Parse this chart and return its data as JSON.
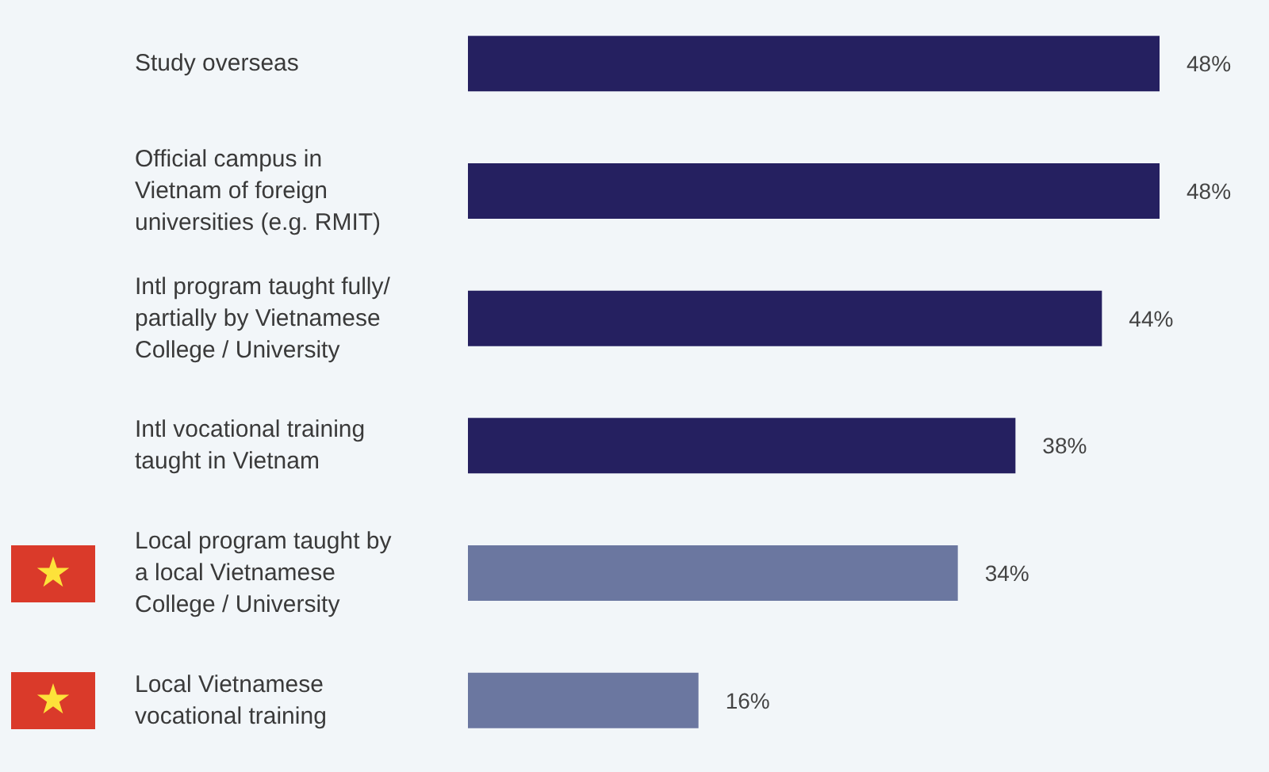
{
  "chart_data": {
    "type": "bar",
    "orientation": "horizontal",
    "categories": [
      "Study overseas",
      "Official campus in Vietnam of foreign universities (e.g. RMIT)",
      "Intl program taught fully/ partially by Vietnamese College / University",
      "Intl vocational training taught in Vietnam",
      "Local program taught by a local Vietnamese College / University",
      "Local Vietnamese vocational training"
    ],
    "values": [
      48,
      48,
      44,
      38,
      34,
      16
    ],
    "colors": [
      "#252060",
      "#252060",
      "#252060",
      "#252060",
      "#6b77a0",
      "#6b77a0"
    ],
    "value_labels": [
      "48%",
      "48%",
      "44%",
      "38%",
      "34%",
      "16%"
    ]
  }
}
